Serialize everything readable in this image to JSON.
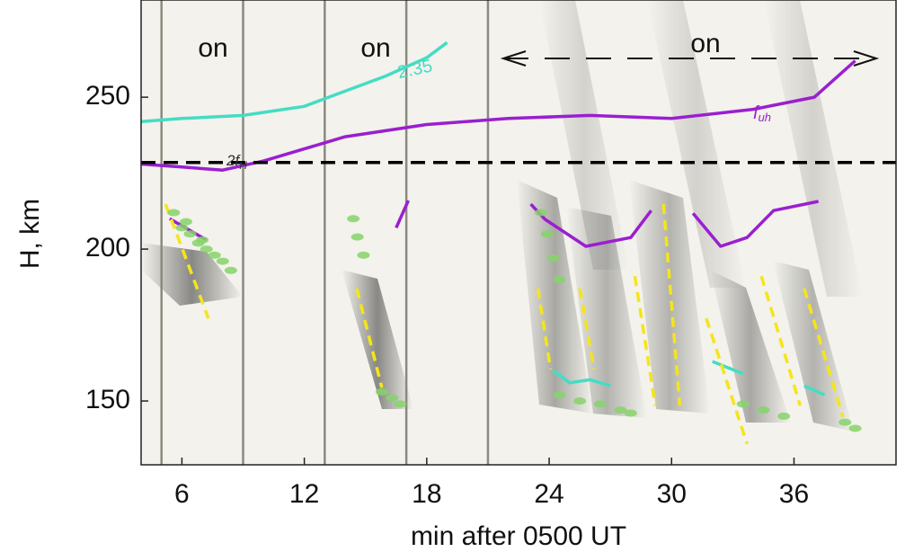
{
  "chart_data": {
    "type": "line",
    "xlabel": "min after 0500 UT",
    "ylabel": "H, km",
    "xlim": [
      4,
      41
    ],
    "ylim": [
      129,
      282
    ],
    "xticks": [
      6,
      12,
      18,
      24,
      30,
      36
    ],
    "yticks": [
      150,
      200,
      250
    ],
    "vlines": [
      5,
      9,
      13,
      17,
      21
    ],
    "vline_color": "#8a8a80",
    "on_labels": [
      "on",
      "on",
      "on"
    ],
    "contour_label": "2.35",
    "fuh_label": {
      "main": "f",
      "sub": "uh"
    },
    "twofh_label": {
      "main": "2f",
      "sub": "H"
    },
    "series": [
      {
        "type": "line",
        "color": "#45dcc4",
        "style": "solid",
        "x": [
          4,
          6,
          9,
          12,
          14,
          16,
          18,
          19
        ],
        "values": [
          242,
          243,
          244,
          247,
          252,
          257,
          263,
          268
        ]
      },
      {
        "type": "line",
        "color": "#9a1fd0",
        "style": "solid",
        "x": [
          4,
          6,
          8,
          10,
          12,
          14,
          18,
          22,
          26,
          30,
          34,
          37,
          39
        ],
        "values": [
          228,
          227,
          226,
          229,
          233,
          237,
          241,
          243,
          244,
          243,
          246,
          250,
          262
        ]
      },
      {
        "type": "line",
        "color": "#000000",
        "style": "dashed",
        "x": [
          4,
          41
        ],
        "values": [
          228.5,
          228.5
        ]
      },
      {
        "type": "line",
        "color": "#9a1fd0",
        "style": "solid",
        "x": [
          5.4,
          7.2,
          null,
          16.5,
          17.1,
          null,
          23.1,
          23.8,
          25.8,
          28,
          29,
          null,
          31.05,
          32.4,
          33.7,
          35,
          37.2
        ],
        "values": [
          210,
          203,
          null,
          207,
          216,
          null,
          214.8,
          209.8,
          200.9,
          203.8,
          212.7,
          null,
          211.8,
          200.9,
          203.8,
          212.7,
          215.7
        ]
      },
      {
        "type": "line",
        "color": "#45dcc4",
        "style": "solid",
        "x": [
          24.2,
          25,
          26,
          27,
          null,
          32,
          33.5,
          null,
          36.5,
          37.5
        ],
        "values": [
          160,
          156,
          157,
          155,
          null,
          163,
          159,
          null,
          155,
          152
        ]
      },
      {
        "type": "line",
        "color": "#f5e51b",
        "style": "dashed",
        "x": [
          5.2,
          7.3,
          null,
          14.57,
          15.8,
          null,
          23.45,
          24.07,
          null,
          25.5,
          26.2,
          null,
          28.2,
          29.2,
          null,
          29.6,
          30.4,
          null,
          31.7,
          33.7,
          null,
          34.4,
          36.3,
          null,
          36.5,
          38.4
        ],
        "values": [
          214.8,
          177.2,
          null,
          187,
          154.4,
          null,
          187,
          160.4,
          null,
          187,
          160.4,
          null,
          191.1,
          148.5,
          null,
          214.8,
          148.5,
          null,
          177.2,
          135.8,
          null,
          191.1,
          148.5,
          null,
          187,
          144.7
        ]
      },
      {
        "type": "scatter",
        "color": "#86d36a",
        "x": [
          5.6,
          6,
          6.2,
          6.4,
          6.8,
          7,
          7.2,
          7.6,
          8,
          8.4,
          14.4,
          14.6,
          14.9,
          15.8,
          16.3,
          16.7,
          23.6,
          23.9,
          24.2,
          24.5,
          24.5,
          25.5,
          26.5,
          27.5,
          28,
          33.5,
          34.5,
          35.5,
          38.5,
          39
        ],
        "values": [
          212,
          207,
          209,
          205,
          202,
          203,
          200,
          198,
          196,
          193,
          210,
          204,
          198,
          153,
          151,
          149,
          212,
          205,
          197,
          190,
          152,
          150,
          149,
          147,
          146,
          149,
          147,
          145,
          143,
          141
        ]
      }
    ]
  }
}
